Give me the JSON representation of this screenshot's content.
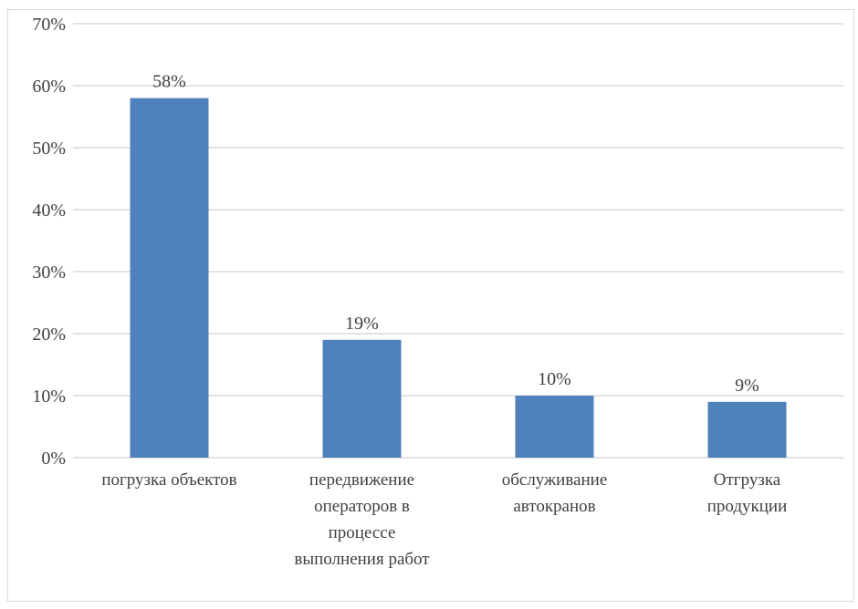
{
  "chart_data": {
    "type": "bar",
    "title": "",
    "xlabel": "",
    "ylabel": "",
    "categories": [
      [
        "погрузка объектов"
      ],
      [
        "передвижение",
        "операторов в",
        "процессе",
        "выполнения работ"
      ],
      [
        "обслуживание",
        "автокранов"
      ],
      [
        "Отгрузка",
        "продукции"
      ]
    ],
    "values": [
      58,
      19,
      10,
      9
    ],
    "data_labels": [
      "58%",
      "19%",
      "10%",
      "9%"
    ],
    "ylim": [
      0,
      70
    ],
    "yticks": [
      0,
      10,
      20,
      30,
      40,
      50,
      60,
      70
    ],
    "ytick_labels": [
      "0%",
      "10%",
      "20%",
      "30%",
      "40%",
      "50%",
      "60%",
      "70%"
    ],
    "grid": true,
    "legend": "none",
    "colors": {
      "bar": "#4f81bd",
      "grid": "#d9d9d9",
      "text": "#404040"
    }
  }
}
